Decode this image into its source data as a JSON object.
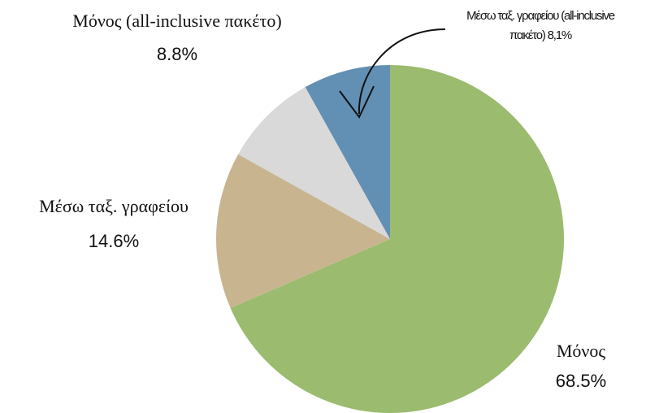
{
  "chart_data": {
    "type": "pie",
    "categories": [
      "Μόνος",
      "Μέσω ταξ. γραφείου",
      "Μόνος (all-inclusive πακέτο)",
      "Μέσω ταξ. γραφείου (all-inclusive πακέτο)"
    ],
    "values": [
      68.5,
      14.6,
      8.8,
      8.1
    ],
    "value_labels": [
      "68.5%",
      "14.6%",
      "8.8%",
      "8,1%"
    ],
    "colors": [
      "#9bbb6e",
      "#c8b58f",
      "#d9d9d9",
      "#628fb4"
    ]
  }
}
